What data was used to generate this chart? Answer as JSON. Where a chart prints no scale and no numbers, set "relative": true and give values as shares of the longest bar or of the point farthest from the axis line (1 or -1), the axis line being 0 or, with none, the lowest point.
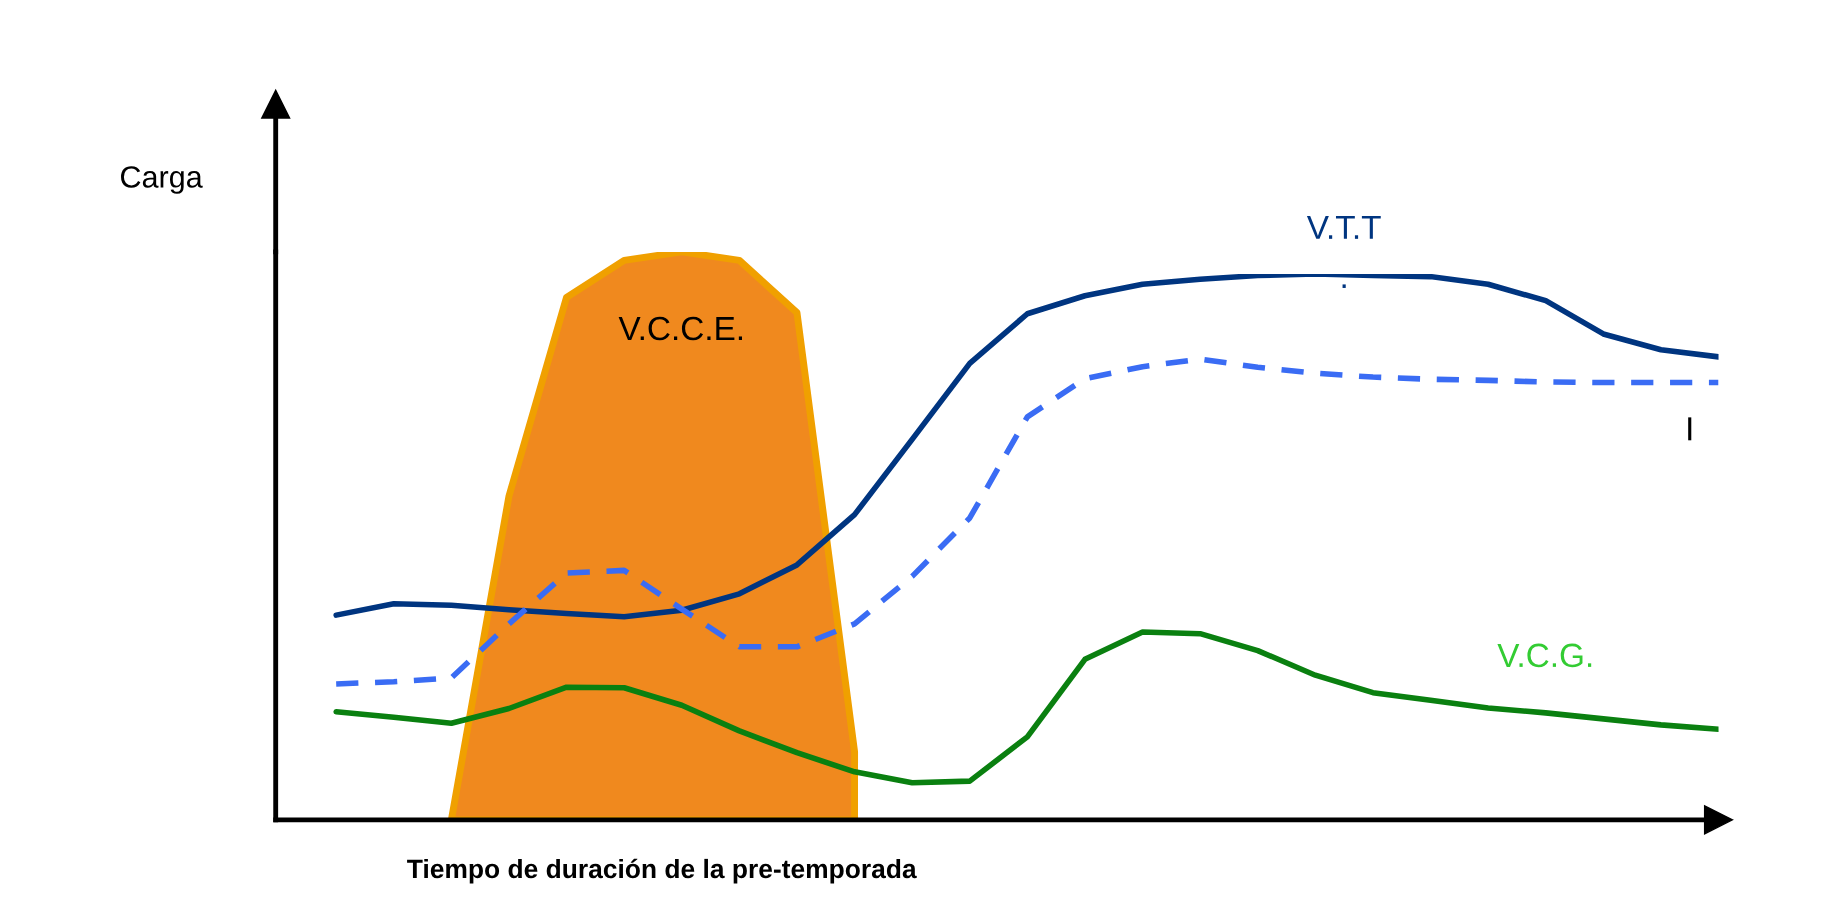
{
  "chart_data": [
    {
      "type": "area",
      "relative": true,
      "categories": [
        null,
        null,
        null,
        null,
        null,
        null,
        null,
        null,
        null,
        null,
        null,
        null,
        null,
        null,
        null,
        null,
        null,
        null,
        null,
        null,
        null,
        null,
        null,
        null,
        null
      ],
      "series": [
        {
          "name": "V.C.C.E.",
          "color": "#f0891e",
          "values": [
            null,
            null,
            0,
            0.57,
            0.92,
            0.985,
            1.0,
            0.985,
            0.893,
            0.12,
            null,
            null,
            null,
            null,
            null,
            null,
            null,
            null,
            null,
            null,
            null,
            null,
            null,
            null,
            null
          ]
        }
      ]
    },
    {
      "type": "line",
      "relative": true,
      "ylabel": "Carga",
      "xlabel": "Tiempo de duración de la pre-temporada",
      "categories": [
        null,
        null,
        null,
        null,
        null,
        null,
        null,
        null,
        null,
        null,
        null,
        null,
        null,
        null,
        null,
        null,
        null,
        null,
        null,
        null,
        null,
        null,
        null,
        null,
        null
      ],
      "series": [
        {
          "name": "V.T.T",
          "color": "#003580",
          "line_style": "solid",
          "values": [
            0.375,
            0.396,
            0.393,
            0.385,
            0.378,
            0.372,
            0.384,
            0.414,
            0.467,
            0.559,
            0.697,
            0.836,
            0.927,
            0.96,
            0.981,
            0.99,
            0.997,
            1.0,
            0.997,
            0.995,
            0.981,
            0.951,
            0.89,
            0.861,
            0.848
          ]
        },
        {
          "name": "I",
          "color": "#3a6cf4",
          "line_style": "dashed",
          "values": [
            0.249,
            0.253,
            0.26,
            0.359,
            0.452,
            0.457,
            0.386,
            0.317,
            0.317,
            0.359,
            0.446,
            0.553,
            0.738,
            0.808,
            0.83,
            0.844,
            0.829,
            0.818,
            0.811,
            0.807,
            0.805,
            0.802,
            0.801,
            0.801,
            0.801
          ]
        },
        {
          "name": "V.C.G.",
          "color": "#0a8010",
          "line_style": "solid",
          "values": [
            0.198,
            0.188,
            0.177,
            0.204,
            0.243,
            0.242,
            0.21,
            0.163,
            0.123,
            0.088,
            0.068,
            0.071,
            0.152,
            0.294,
            0.344,
            0.341,
            0.31,
            0.265,
            0.233,
            0.219,
            0.205,
            0.196,
            0.185,
            0.174,
            0.166
          ]
        }
      ],
      "annotations": [
        "."
      ]
    }
  ]
}
